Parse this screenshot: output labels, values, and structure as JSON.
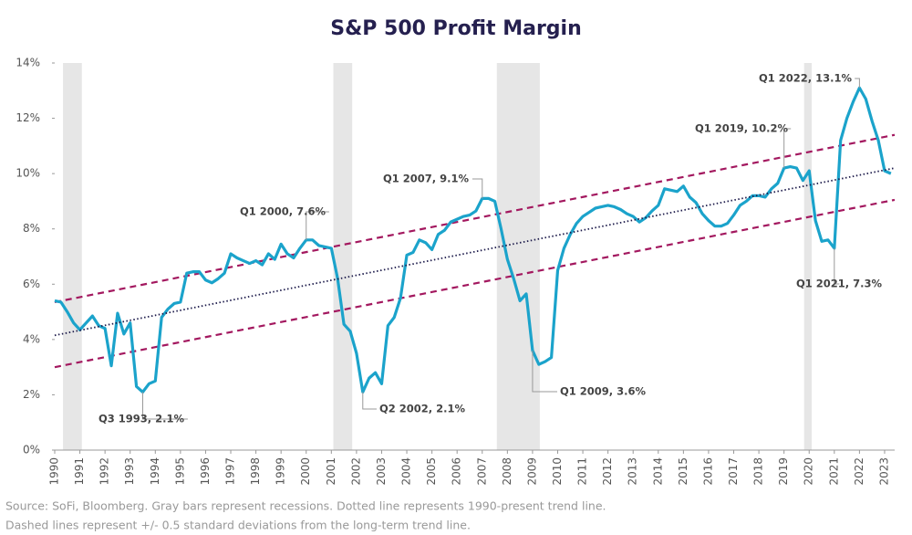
{
  "chart_data": {
    "type": "line",
    "title": "S&P 500 Profit Margin",
    "color": "#1ba3cb",
    "x": [
      1990,
      1990.25,
      1990.5,
      1990.75,
      1991,
      1991.25,
      1991.5,
      1991.75,
      1992,
      1992.25,
      1992.5,
      1992.75,
      1993,
      1993.25,
      1993.5,
      1993.75,
      1994,
      1994.25,
      1994.5,
      1994.75,
      1995,
      1995.25,
      1995.5,
      1995.75,
      1996,
      1996.25,
      1996.5,
      1996.75,
      1997,
      1997.25,
      1997.5,
      1997.75,
      1998,
      1998.25,
      1998.5,
      1998.75,
      1999,
      1999.25,
      1999.5,
      1999.75,
      2000,
      2000.25,
      2000.5,
      2000.75,
      2001,
      2001.25,
      2001.5,
      2001.75,
      2002,
      2002.25,
      2002.5,
      2002.75,
      2003,
      2003.25,
      2003.5,
      2003.75,
      2004,
      2004.25,
      2004.5,
      2004.75,
      2005,
      2005.25,
      2005.5,
      2005.75,
      2006,
      2006.25,
      2006.5,
      2006.75,
      2007,
      2007.25,
      2007.5,
      2007.75,
      2008,
      2008.25,
      2008.5,
      2008.75,
      2009,
      2009.25,
      2009.5,
      2009.75,
      2010,
      2010.25,
      2010.5,
      2010.75,
      2011,
      2011.25,
      2011.5,
      2011.75,
      2012,
      2012.25,
      2012.5,
      2012.75,
      2013,
      2013.25,
      2013.5,
      2013.75,
      2014,
      2014.25,
      2014.5,
      2014.75,
      2015,
      2015.25,
      2015.5,
      2015.75,
      2016,
      2016.25,
      2016.5,
      2016.75,
      2017,
      2017.25,
      2017.5,
      2017.75,
      2018,
      2018.25,
      2018.5,
      2018.75,
      2019,
      2019.25,
      2019.5,
      2019.75,
      2020,
      2020.25,
      2020.5,
      2020.75,
      2021,
      2021.25,
      2021.5,
      2021.75,
      2022,
      2022.25,
      2022.5,
      2022.75,
      2023,
      2023.25
    ],
    "values": [
      5.4,
      5.35,
      5.0,
      4.6,
      4.35,
      4.6,
      4.85,
      4.5,
      4.4,
      3.05,
      4.95,
      4.2,
      4.6,
      2.3,
      2.1,
      2.4,
      2.5,
      4.8,
      5.1,
      5.3,
      5.35,
      6.4,
      6.45,
      6.45,
      6.15,
      6.05,
      6.2,
      6.4,
      7.1,
      6.95,
      6.85,
      6.75,
      6.85,
      6.7,
      7.1,
      6.9,
      7.45,
      7.1,
      6.95,
      7.3,
      7.6,
      7.6,
      7.4,
      7.35,
      7.3,
      6.2,
      4.55,
      4.3,
      3.5,
      2.1,
      2.6,
      2.8,
      2.4,
      4.5,
      4.8,
      5.5,
      7.05,
      7.15,
      7.6,
      7.5,
      7.25,
      7.8,
      7.95,
      8.25,
      8.35,
      8.45,
      8.5,
      8.65,
      9.1,
      9.1,
      9.0,
      8.0,
      6.9,
      6.2,
      5.4,
      5.65,
      3.6,
      3.1,
      3.2,
      3.35,
      6.5,
      7.3,
      7.8,
      8.2,
      8.45,
      8.6,
      8.75,
      8.8,
      8.85,
      8.8,
      8.7,
      8.55,
      8.45,
      8.25,
      8.4,
      8.65,
      8.85,
      9.45,
      9.4,
      9.35,
      9.55,
      9.15,
      8.95,
      8.55,
      8.3,
      8.1,
      8.1,
      8.2,
      8.5,
      8.85,
      9.0,
      9.2,
      9.2,
      9.15,
      9.45,
      9.65,
      10.2,
      10.25,
      10.2,
      9.75,
      10.1,
      8.3,
      7.55,
      7.6,
      7.3,
      11.2,
      12.0,
      12.6,
      13.1,
      12.7,
      11.9,
      11.2,
      10.1,
      10.0
    ],
    "xlim": [
      1990,
      2023.4
    ],
    "xticks": [
      1990,
      1991,
      1992,
      1993,
      1994,
      1995,
      1996,
      1997,
      1998,
      1999,
      2000,
      2001,
      2002,
      2003,
      2004,
      2005,
      2006,
      2007,
      2008,
      2009,
      2010,
      2011,
      2012,
      2013,
      2014,
      2015,
      2016,
      2017,
      2018,
      2019,
      2020,
      2021,
      2022,
      2023
    ],
    "ylim": [
      0,
      14
    ],
    "yticks": [
      {
        "value": 0,
        "label": "0%"
      },
      {
        "value": 2,
        "label": "2%"
      },
      {
        "value": 4,
        "label": "4%"
      },
      {
        "value": 6,
        "label": "6%"
      },
      {
        "value": 8,
        "label": "8%"
      },
      {
        "value": 10,
        "label": "10%"
      },
      {
        "value": 12,
        "label": "12%"
      },
      {
        "value": 14,
        "label": "14%"
      }
    ],
    "recessions": [
      [
        1990.33,
        1991.08
      ],
      [
        2001.08,
        2001.83
      ],
      [
        2007.58,
        2009.29
      ],
      [
        2019.8,
        2020.1
      ]
    ],
    "recession_color": "#e6e6e6",
    "trend": {
      "x": [
        1990,
        2023.4
      ],
      "values": [
        4.15,
        10.2
      ],
      "color": "#1d1b4b"
    },
    "upper_band": {
      "x": [
        1990,
        2023.4
      ],
      "values": [
        5.35,
        11.4
      ],
      "color": "#a3185f"
    },
    "lower_band": {
      "x": [
        1990,
        2023.4
      ],
      "values": [
        3.0,
        9.05
      ],
      "color": "#a3185f"
    },
    "annotations": [
      {
        "text": "Q1 2022, 13.1%",
        "x": 2022,
        "y": 13.1
      },
      {
        "text": "Q1 2019, 10.2%",
        "x": 2019,
        "y": 10.2
      },
      {
        "text": "Q1 2007, 9.1%",
        "x": 2007,
        "y": 9.1
      },
      {
        "text": "Q1 2000, 7.6%",
        "x": 2000,
        "y": 7.6
      },
      {
        "text": "Q3 1993, 2.1%",
        "x": 1993.5,
        "y": 2.1
      },
      {
        "text": "Q2 2002, 2.1%",
        "x": 2002.25,
        "y": 2.1
      },
      {
        "text": "Q1 2009, 3.6%",
        "x": 2009,
        "y": 3.6
      },
      {
        "text": "Q1 2021, 7.3%",
        "x": 2021,
        "y": 7.3
      }
    ],
    "footnote": [
      "Source: SoFi, Bloomberg. Gray bars represent recessions. Dotted line represents 1990-present trend line.",
      "Dashed lines represent +/- 0.5 standard deviations from the long-term trend line."
    ]
  }
}
